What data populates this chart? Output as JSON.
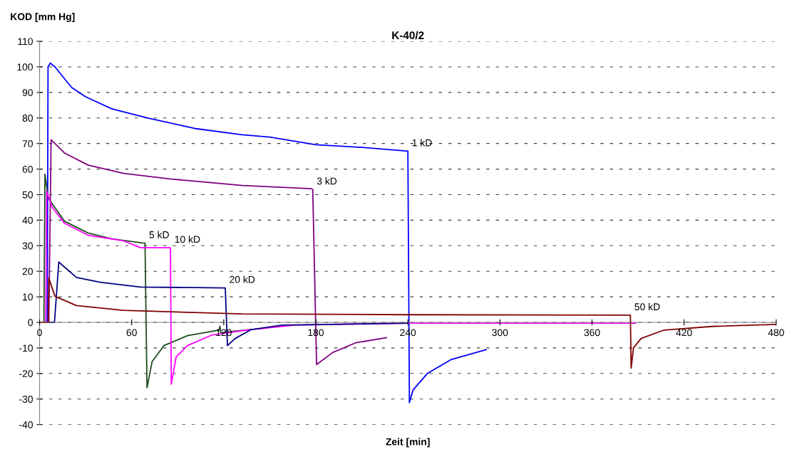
{
  "chart_data": {
    "type": "line",
    "title": "K-40/2",
    "xlabel": "Zeit [min]",
    "ylabel": "KOD [mm Hg]",
    "xlim": [
      0,
      480
    ],
    "xticks": [
      0,
      60,
      120,
      180,
      240,
      300,
      360,
      420,
      480
    ],
    "ylim": [
      -40,
      110
    ],
    "yticks": [
      -40,
      -30,
      -20,
      -10,
      0,
      10,
      20,
      30,
      40,
      50,
      60,
      70,
      80,
      90,
      100,
      110
    ],
    "grid": "y",
    "legend": false,
    "line_style": "solid",
    "marker": "none",
    "series": [
      {
        "name": "1 kD",
        "color": "#0000ff",
        "x": [
          0,
          5,
          5.5,
          7,
          10,
          20.9,
          30,
          47,
          70.5,
          101,
          132,
          150,
          180,
          210,
          240,
          241,
          243.4,
          252.7,
          268,
          291
        ],
        "values": [
          0,
          0,
          100,
          101.5,
          100,
          91.9,
          88.3,
          83.6,
          80,
          75.9,
          73.4,
          72.5,
          69.5,
          68.5,
          67,
          -31.4,
          -26.4,
          -20,
          -14.6,
          -10.7
        ]
      },
      {
        "name": "3 kD",
        "color": "#800080",
        "x": [
          0,
          6,
          7.5,
          16.2,
          31.5,
          54.7,
          85.8,
          132,
          177,
          178,
          180.5,
          191,
          206,
          226
        ],
        "values": [
          0,
          0,
          71.5,
          66.3,
          61.6,
          58.3,
          56.1,
          53.6,
          52.3,
          52,
          -16.5,
          -11.8,
          -8,
          -6
        ]
      },
      {
        "name": "5 kD",
        "color": "#1e4d1e",
        "x": [
          0,
          2.8,
          3.5,
          5.6,
          16.2,
          31.5,
          47,
          67,
          68.7,
          70,
          73.3,
          81,
          96.4,
          117,
          117.5,
          118,
          138
        ],
        "values": [
          0,
          0,
          58,
          48.7,
          39.6,
          35,
          32.7,
          31.1,
          31,
          -25.6,
          -15.4,
          -9.1,
          -5.2,
          -3,
          -1.5,
          -4,
          -2.8
        ]
      },
      {
        "name": "10 kD",
        "color": "#ff00ff",
        "x": [
          0,
          4,
          4.6,
          8.3,
          16.2,
          31.5,
          54.7,
          65.8,
          85.3,
          85.8,
          89,
          96.4,
          112,
          135,
          166,
          240,
          388.5
        ],
        "values": [
          0,
          0,
          51.4,
          45,
          38.8,
          34.1,
          31.9,
          29.2,
          29.2,
          -24.2,
          -13.5,
          -9.1,
          -5,
          -3,
          -1.1,
          -0.3,
          -0.3
        ]
      },
      {
        "name": "20 kD",
        "color": "#000080",
        "x": [
          0,
          9.7,
          12.5,
          24,
          39.4,
          65.8,
          121,
          122.4,
          127.5,
          138,
          158,
          240
        ],
        "values": [
          0,
          0,
          23.6,
          17.6,
          15.7,
          13.8,
          13.5,
          -9.1,
          -6.3,
          -2.8,
          -1.1,
          -0.3
        ]
      },
      {
        "name": "50 kD",
        "color": "#800000",
        "x": [
          0,
          5.6,
          6,
          10,
          24,
          54.7,
          132,
          240,
          385,
          385.5,
          387,
          392,
          407,
          438,
          480
        ],
        "values": [
          0,
          0,
          17.3,
          10.2,
          6.6,
          4.7,
          3.3,
          3,
          2.8,
          -17.9,
          -10,
          -6.3,
          -3,
          -1.6,
          -0.8
        ]
      }
    ]
  }
}
